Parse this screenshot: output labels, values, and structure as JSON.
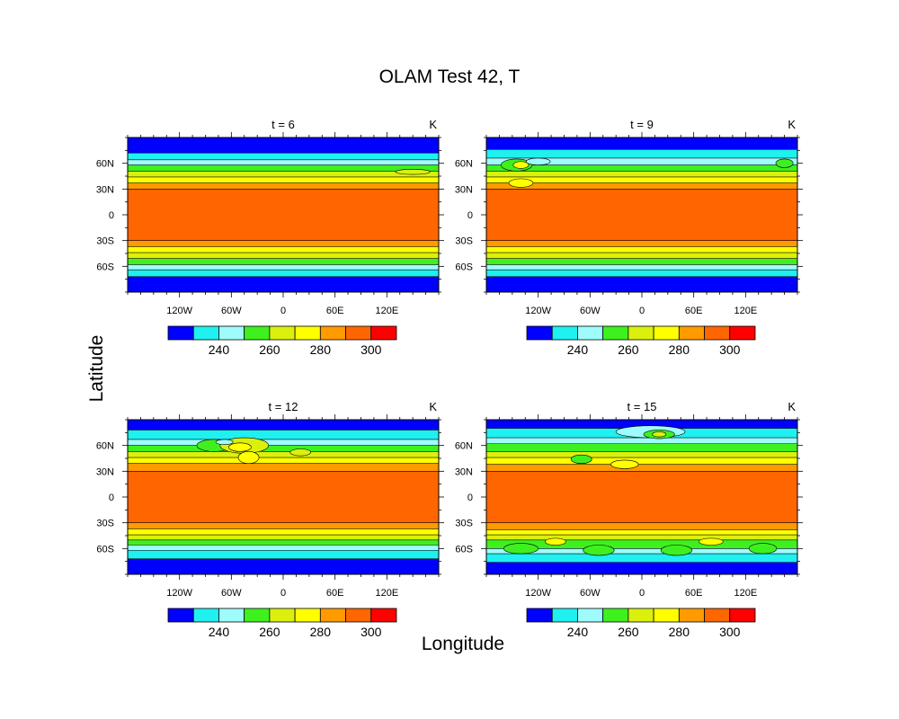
{
  "figure": {
    "title": "OLAM Test 42, T",
    "xlabel": "Longitude",
    "ylabel": "Latitude"
  },
  "colorbar": {
    "colors": [
      "#0000ff",
      "#1ff0f0",
      "#9ffcfc",
      "#3ff01f",
      "#dbf00d",
      "#ffff00",
      "#ff9a00",
      "#ff6600",
      "#ff0000"
    ],
    "labels": [
      "240",
      "260",
      "280",
      "300"
    ],
    "levels": [
      230,
      240,
      250,
      260,
      270,
      280,
      290,
      300
    ]
  },
  "chart_data": [
    {
      "type": "heatmap",
      "title": "t = 6",
      "units": "K",
      "x_ticks": [
        "120W",
        "60W",
        "0",
        "60E",
        "120E"
      ],
      "y_ticks": [
        "60N",
        "30N",
        "0",
        "30S",
        "60S"
      ],
      "ylim": [
        -90,
        90
      ],
      "bands": [
        {
          "lat_min": 72,
          "lat_max": 90,
          "level": 0
        },
        {
          "lat_min": 64,
          "lat_max": 72,
          "level": 1
        },
        {
          "lat_min": 58,
          "lat_max": 64,
          "level": 2
        },
        {
          "lat_min": 51,
          "lat_max": 58,
          "level": 3
        },
        {
          "lat_min": 44,
          "lat_max": 51,
          "level": 4
        },
        {
          "lat_min": 37,
          "lat_max": 44,
          "level": 5
        },
        {
          "lat_min": 30,
          "lat_max": 37,
          "level": 6
        },
        {
          "lat_min": -30,
          "lat_max": 30,
          "level": 7
        },
        {
          "lat_min": -37,
          "lat_max": -30,
          "level": 6
        },
        {
          "lat_min": -44,
          "lat_max": -37,
          "level": 5
        },
        {
          "lat_min": -51,
          "lat_max": -44,
          "level": 4
        },
        {
          "lat_min": -58,
          "lat_max": -51,
          "level": 3
        },
        {
          "lat_min": -64,
          "lat_max": -58,
          "level": 2
        },
        {
          "lat_min": -72,
          "lat_max": -64,
          "level": 1
        },
        {
          "lat_min": -90,
          "lat_max": -72,
          "level": 0
        }
      ],
      "eddies": [
        {
          "lon": 150,
          "lat": 50,
          "level": 4,
          "rx": 20,
          "ry": 3
        }
      ]
    },
    {
      "type": "heatmap",
      "title": "t = 9",
      "units": "K",
      "x_ticks": [
        "120W",
        "60W",
        "0",
        "60E",
        "120E"
      ],
      "y_ticks": [
        "60N",
        "30N",
        "0",
        "30S",
        "60S"
      ],
      "ylim": [
        -90,
        90
      ],
      "bands": [
        {
          "lat_min": 76,
          "lat_max": 90,
          "level": 0
        },
        {
          "lat_min": 66,
          "lat_max": 76,
          "level": 1
        },
        {
          "lat_min": 58,
          "lat_max": 66,
          "level": 2
        },
        {
          "lat_min": 51,
          "lat_max": 58,
          "level": 3
        },
        {
          "lat_min": 44,
          "lat_max": 51,
          "level": 4
        },
        {
          "lat_min": 37,
          "lat_max": 44,
          "level": 5
        },
        {
          "lat_min": 30,
          "lat_max": 37,
          "level": 6
        },
        {
          "lat_min": -30,
          "lat_max": 30,
          "level": 7
        },
        {
          "lat_min": -37,
          "lat_max": -30,
          "level": 6
        },
        {
          "lat_min": -44,
          "lat_max": -37,
          "level": 5
        },
        {
          "lat_min": -51,
          "lat_max": -44,
          "level": 4
        },
        {
          "lat_min": -58,
          "lat_max": -51,
          "level": 3
        },
        {
          "lat_min": -64,
          "lat_max": -58,
          "level": 2
        },
        {
          "lat_min": -72,
          "lat_max": -64,
          "level": 1
        },
        {
          "lat_min": -90,
          "lat_max": -72,
          "level": 0
        }
      ],
      "eddies": [
        {
          "lon": -145,
          "lat": 58,
          "level": 3,
          "rx": 18,
          "ry": 7
        },
        {
          "lon": -140,
          "lat": 58,
          "level": 5,
          "rx": 9,
          "ry": 4
        },
        {
          "lon": -120,
          "lat": 62,
          "level": 2,
          "rx": 14,
          "ry": 4
        },
        {
          "lon": -140,
          "lat": 37,
          "level": 5,
          "rx": 14,
          "ry": 5
        },
        {
          "lon": 165,
          "lat": 60,
          "level": 3,
          "rx": 10,
          "ry": 5
        }
      ]
    },
    {
      "type": "heatmap",
      "title": "t = 12",
      "units": "K",
      "x_ticks": [
        "120W",
        "60W",
        "0",
        "60E",
        "120E"
      ],
      "y_ticks": [
        "60N",
        "30N",
        "0",
        "30S",
        "60S"
      ],
      "ylim": [
        -90,
        90
      ],
      "bands": [
        {
          "lat_min": 78,
          "lat_max": 90,
          "level": 0
        },
        {
          "lat_min": 67,
          "lat_max": 78,
          "level": 1
        },
        {
          "lat_min": 60,
          "lat_max": 67,
          "level": 2
        },
        {
          "lat_min": 53,
          "lat_max": 60,
          "level": 3
        },
        {
          "lat_min": 46,
          "lat_max": 53,
          "level": 4
        },
        {
          "lat_min": 39,
          "lat_max": 46,
          "level": 5
        },
        {
          "lat_min": 30,
          "lat_max": 39,
          "level": 6
        },
        {
          "lat_min": -30,
          "lat_max": 30,
          "level": 7
        },
        {
          "lat_min": -37,
          "lat_max": -30,
          "level": 6
        },
        {
          "lat_min": -44,
          "lat_max": -37,
          "level": 5
        },
        {
          "lat_min": -50,
          "lat_max": -44,
          "level": 4
        },
        {
          "lat_min": -56,
          "lat_max": -50,
          "level": 3
        },
        {
          "lat_min": -62,
          "lat_max": -56,
          "level": 2
        },
        {
          "lat_min": -72,
          "lat_max": -62,
          "level": 1
        },
        {
          "lat_min": -90,
          "lat_max": -72,
          "level": 0
        }
      ],
      "eddies": [
        {
          "lon": -80,
          "lat": 60,
          "level": 3,
          "rx": 20,
          "ry": 7
        },
        {
          "lon": -45,
          "lat": 60,
          "level": 4,
          "rx": 28,
          "ry": 9
        },
        {
          "lon": -50,
          "lat": 58,
          "level": 5,
          "rx": 13,
          "ry": 5
        },
        {
          "lon": -40,
          "lat": 46,
          "level": 5,
          "rx": 12,
          "ry": 7
        },
        {
          "lon": -68,
          "lat": 64,
          "level": 2,
          "rx": 10,
          "ry": 3
        },
        {
          "lon": 20,
          "lat": 52,
          "level": 4,
          "rx": 12,
          "ry": 4
        }
      ]
    },
    {
      "type": "heatmap",
      "title": "t = 15",
      "units": "K",
      "x_ticks": [
        "120W",
        "60W",
        "0",
        "60E",
        "120E"
      ],
      "y_ticks": [
        "60N",
        "30N",
        "0",
        "30S",
        "60S"
      ],
      "ylim": [
        -90,
        90
      ],
      "bands": [
        {
          "lat_min": 80,
          "lat_max": 90,
          "level": 0
        },
        {
          "lat_min": 69,
          "lat_max": 80,
          "level": 1
        },
        {
          "lat_min": 62,
          "lat_max": 69,
          "level": 2
        },
        {
          "lat_min": 53,
          "lat_max": 62,
          "level": 3
        },
        {
          "lat_min": 46,
          "lat_max": 53,
          "level": 4
        },
        {
          "lat_min": 38,
          "lat_max": 46,
          "level": 5
        },
        {
          "lat_min": 30,
          "lat_max": 38,
          "level": 6
        },
        {
          "lat_min": -30,
          "lat_max": 30,
          "level": 7
        },
        {
          "lat_min": -38,
          "lat_max": -30,
          "level": 6
        },
        {
          "lat_min": -44,
          "lat_max": -38,
          "level": 5
        },
        {
          "lat_min": -50,
          "lat_max": -44,
          "level": 4
        },
        {
          "lat_min": -60,
          "lat_max": -50,
          "level": 3
        },
        {
          "lat_min": -66,
          "lat_max": -60,
          "level": 2
        },
        {
          "lat_min": -76,
          "lat_max": -66,
          "level": 1
        },
        {
          "lat_min": -90,
          "lat_max": -76,
          "level": 0
        }
      ],
      "eddies": [
        {
          "lon": 10,
          "lat": 76,
          "level": 2,
          "rx": 40,
          "ry": 7
        },
        {
          "lon": 20,
          "lat": 73,
          "level": 3,
          "rx": 18,
          "ry": 5
        },
        {
          "lon": 20,
          "lat": 73,
          "level": 4,
          "rx": 8,
          "ry": 3
        },
        {
          "lon": -70,
          "lat": 44,
          "level": 3,
          "rx": 12,
          "ry": 5
        },
        {
          "lon": -20,
          "lat": 38,
          "level": 5,
          "rx": 16,
          "ry": 5
        },
        {
          "lon": -140,
          "lat": -60,
          "level": 3,
          "rx": 20,
          "ry": 6
        },
        {
          "lon": -50,
          "lat": -62,
          "level": 3,
          "rx": 18,
          "ry": 6
        },
        {
          "lon": 40,
          "lat": -62,
          "level": 3,
          "rx": 18,
          "ry": 6
        },
        {
          "lon": 140,
          "lat": -60,
          "level": 3,
          "rx": 16,
          "ry": 6
        },
        {
          "lon": -100,
          "lat": -52,
          "level": 5,
          "rx": 12,
          "ry": 4
        },
        {
          "lon": 80,
          "lat": -52,
          "level": 5,
          "rx": 14,
          "ry": 4
        }
      ]
    }
  ]
}
